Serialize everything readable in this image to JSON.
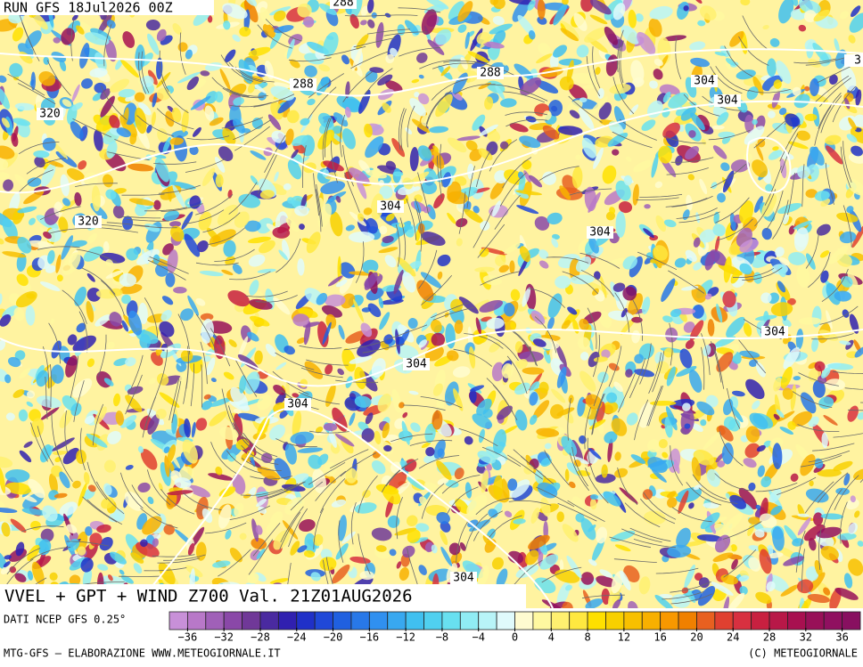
{
  "header": {
    "run": "RUN GFS 18Jul2026 00Z"
  },
  "map": {
    "title": "VVEL + GPT + WIND Z700 Val. 21Z01AUG2026",
    "contour_labels": [
      "288",
      "288",
      "288",
      "320",
      "320",
      "304",
      "304",
      "304",
      "304",
      "304",
      "304",
      "304",
      "304",
      "3"
    ]
  },
  "colorbar": {
    "source": "DATI NCEP GFS 0.25°",
    "colors": [
      "#c890d8",
      "#b878c8",
      "#a060b8",
      "#8a48a8",
      "#703898",
      "#4a2aa0",
      "#3020b0",
      "#2030c8",
      "#2048d8",
      "#2060e0",
      "#2878e8",
      "#3090f0",
      "#38a8f0",
      "#40c0f0",
      "#50d0f0",
      "#68e0f0",
      "#90ecf4",
      "#b8f4f8",
      "#e0fafc",
      "#fffbd0",
      "#fff8a0",
      "#fff070",
      "#ffe840",
      "#ffe000",
      "#f8d000",
      "#f8c000",
      "#f8b000",
      "#f89800",
      "#f08000",
      "#e86020",
      "#e04030",
      "#d83040",
      "#c82040",
      "#b81848",
      "#a81050",
      "#981058",
      "#901060",
      "#881060"
    ],
    "ticks": [
      {
        "value": -36,
        "label": "−36"
      },
      {
        "value": -32,
        "label": "−32"
      },
      {
        "value": -28,
        "label": "−28"
      },
      {
        "value": -24,
        "label": "−24"
      },
      {
        "value": -20,
        "label": "−20"
      },
      {
        "value": -16,
        "label": "−16"
      },
      {
        "value": -12,
        "label": "−12"
      },
      {
        "value": -8,
        "label": "−8"
      },
      {
        "value": -4,
        "label": "−4"
      },
      0,
      4,
      8,
      12,
      16,
      20,
      24,
      28,
      32,
      36
    ],
    "range": [
      -38,
      38
    ]
  },
  "footer": {
    "left": "MTG-GFS — ELABORAZIONE WWW.METEOGIORNALE.IT",
    "right": "(C) METEOGIORNALE"
  }
}
